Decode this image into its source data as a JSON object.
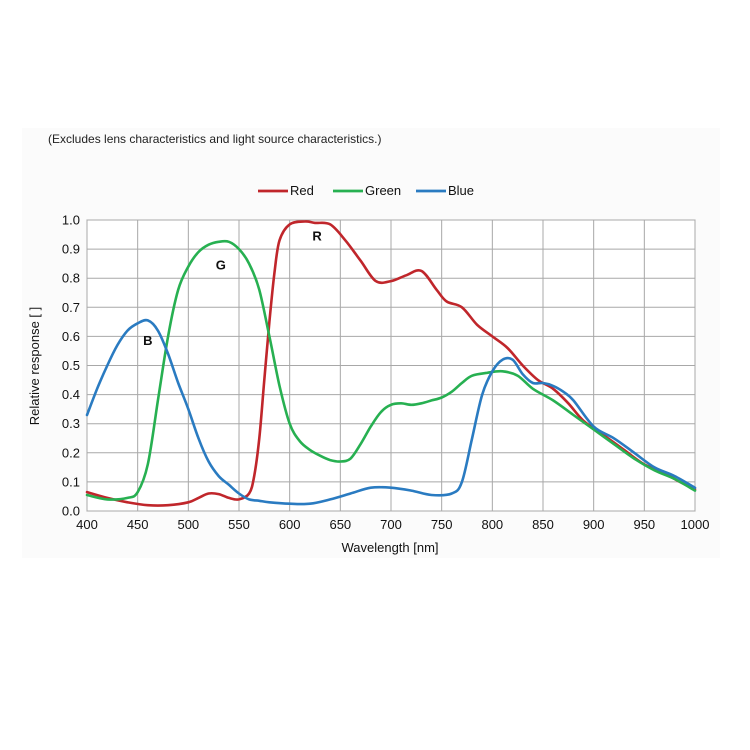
{
  "chart_data": {
    "type": "line",
    "note": "(Excludes lens characteristics and light source characteristics.)",
    "xlabel": "Wavelength [nm]",
    "ylabel": "Relative response [ ]",
    "xlim": [
      400,
      1000
    ],
    "ylim": [
      0,
      1.0
    ],
    "x_ticks": [
      400,
      450,
      500,
      550,
      600,
      650,
      700,
      750,
      800,
      850,
      900,
      950,
      1000
    ],
    "y_ticks": [
      "0.0",
      "0.1",
      "0.2",
      "0.3",
      "0.4",
      "0.5",
      "0.6",
      "0.7",
      "0.8",
      "0.9",
      "1.0"
    ],
    "grid": true,
    "legend_position": "top-center",
    "series": [
      {
        "name": "Red",
        "color": "#c0262b",
        "points": [
          [
            400,
            0.065
          ],
          [
            420,
            0.045
          ],
          [
            440,
            0.03
          ],
          [
            460,
            0.02
          ],
          [
            480,
            0.02
          ],
          [
            500,
            0.03
          ],
          [
            510,
            0.045
          ],
          [
            520,
            0.06
          ],
          [
            530,
            0.058
          ],
          [
            540,
            0.045
          ],
          [
            550,
            0.04
          ],
          [
            560,
            0.06
          ],
          [
            565,
            0.12
          ],
          [
            570,
            0.25
          ],
          [
            575,
            0.45
          ],
          [
            580,
            0.65
          ],
          [
            585,
            0.82
          ],
          [
            590,
            0.93
          ],
          [
            600,
            0.985
          ],
          [
            615,
            0.995
          ],
          [
            625,
            0.99
          ],
          [
            640,
            0.985
          ],
          [
            655,
            0.93
          ],
          [
            670,
            0.86
          ],
          [
            685,
            0.79
          ],
          [
            700,
            0.79
          ],
          [
            715,
            0.81
          ],
          [
            730,
            0.825
          ],
          [
            745,
            0.76
          ],
          [
            755,
            0.72
          ],
          [
            770,
            0.7
          ],
          [
            785,
            0.64
          ],
          [
            800,
            0.6
          ],
          [
            815,
            0.56
          ],
          [
            830,
            0.5
          ],
          [
            845,
            0.45
          ],
          [
            860,
            0.42
          ],
          [
            875,
            0.37
          ],
          [
            890,
            0.31
          ],
          [
            910,
            0.26
          ],
          [
            930,
            0.21
          ],
          [
            950,
            0.16
          ],
          [
            970,
            0.13
          ],
          [
            985,
            0.1
          ],
          [
            1000,
            0.075
          ]
        ],
        "label": "R",
        "label_pos": [
          627,
          0.93
        ]
      },
      {
        "name": "Green",
        "color": "#27b051",
        "points": [
          [
            400,
            0.055
          ],
          [
            420,
            0.04
          ],
          [
            440,
            0.045
          ],
          [
            450,
            0.065
          ],
          [
            460,
            0.16
          ],
          [
            470,
            0.38
          ],
          [
            480,
            0.6
          ],
          [
            490,
            0.76
          ],
          [
            500,
            0.84
          ],
          [
            510,
            0.89
          ],
          [
            520,
            0.915
          ],
          [
            530,
            0.925
          ],
          [
            540,
            0.925
          ],
          [
            550,
            0.9
          ],
          [
            560,
            0.85
          ],
          [
            570,
            0.76
          ],
          [
            580,
            0.6
          ],
          [
            590,
            0.43
          ],
          [
            600,
            0.3
          ],
          [
            610,
            0.24
          ],
          [
            620,
            0.21
          ],
          [
            630,
            0.19
          ],
          [
            640,
            0.175
          ],
          [
            650,
            0.17
          ],
          [
            660,
            0.18
          ],
          [
            670,
            0.23
          ],
          [
            680,
            0.29
          ],
          [
            690,
            0.34
          ],
          [
            700,
            0.365
          ],
          [
            710,
            0.37
          ],
          [
            720,
            0.365
          ],
          [
            730,
            0.37
          ],
          [
            740,
            0.38
          ],
          [
            750,
            0.39
          ],
          [
            760,
            0.41
          ],
          [
            770,
            0.44
          ],
          [
            780,
            0.465
          ],
          [
            795,
            0.475
          ],
          [
            810,
            0.48
          ],
          [
            825,
            0.465
          ],
          [
            840,
            0.42
          ],
          [
            860,
            0.38
          ],
          [
            880,
            0.33
          ],
          [
            900,
            0.28
          ],
          [
            920,
            0.23
          ],
          [
            940,
            0.18
          ],
          [
            960,
            0.14
          ],
          [
            980,
            0.11
          ],
          [
            1000,
            0.07
          ]
        ],
        "label": "G",
        "label_pos": [
          532,
          0.83
        ]
      },
      {
        "name": "Blue",
        "color": "#2a7bc1",
        "points": [
          [
            400,
            0.33
          ],
          [
            410,
            0.42
          ],
          [
            420,
            0.5
          ],
          [
            430,
            0.57
          ],
          [
            440,
            0.62
          ],
          [
            450,
            0.645
          ],
          [
            460,
            0.655
          ],
          [
            470,
            0.62
          ],
          [
            480,
            0.54
          ],
          [
            490,
            0.44
          ],
          [
            500,
            0.35
          ],
          [
            510,
            0.25
          ],
          [
            520,
            0.17
          ],
          [
            530,
            0.12
          ],
          [
            540,
            0.09
          ],
          [
            550,
            0.06
          ],
          [
            560,
            0.04
          ],
          [
            570,
            0.035
          ],
          [
            580,
            0.03
          ],
          [
            600,
            0.025
          ],
          [
            620,
            0.025
          ],
          [
            640,
            0.04
          ],
          [
            660,
            0.06
          ],
          [
            680,
            0.08
          ],
          [
            700,
            0.08
          ],
          [
            720,
            0.07
          ],
          [
            740,
            0.055
          ],
          [
            760,
            0.06
          ],
          [
            770,
            0.1
          ],
          [
            780,
            0.25
          ],
          [
            790,
            0.4
          ],
          [
            800,
            0.48
          ],
          [
            810,
            0.52
          ],
          [
            820,
            0.52
          ],
          [
            830,
            0.47
          ],
          [
            840,
            0.44
          ],
          [
            850,
            0.44
          ],
          [
            860,
            0.43
          ],
          [
            870,
            0.41
          ],
          [
            880,
            0.38
          ],
          [
            900,
            0.29
          ],
          [
            920,
            0.25
          ],
          [
            940,
            0.2
          ],
          [
            960,
            0.15
          ],
          [
            980,
            0.12
          ],
          [
            1000,
            0.08
          ]
        ],
        "label": "B",
        "label_pos": [
          460,
          0.57
        ]
      }
    ]
  }
}
